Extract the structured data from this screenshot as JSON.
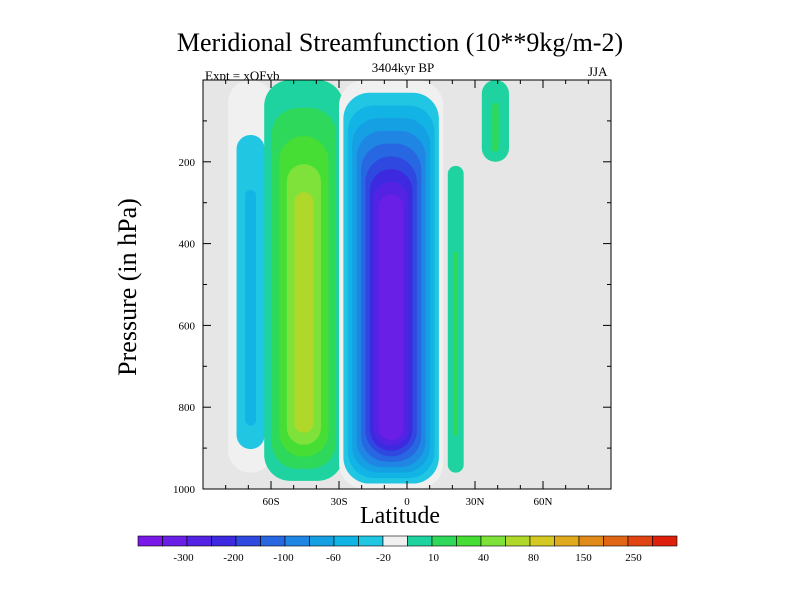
{
  "header": {
    "title": "Meridional Streamfunction (10**9kg/m-2)",
    "expt": "Expt = xQFvb",
    "period": "3404kyr BP",
    "season": "JJA"
  },
  "chart_data": {
    "type": "heatmap",
    "title": "Meridional Streamfunction (10**9kg/m-2)",
    "xlabel": "Latitude",
    "ylabel": "Pressure (in hPa)",
    "xlim": [
      -90,
      90
    ],
    "ylim": [
      1000,
      0
    ],
    "x_ticks": [
      {
        "value": -60,
        "label": "60S"
      },
      {
        "value": -30,
        "label": "30S"
      },
      {
        "value": 0,
        "label": "0"
      },
      {
        "value": 30,
        "label": "30N"
      },
      {
        "value": 60,
        "label": "60N"
      }
    ],
    "y_ticks": [
      {
        "value": 200,
        "label": "200"
      },
      {
        "value": 400,
        "label": "400"
      },
      {
        "value": 600,
        "label": "600"
      },
      {
        "value": 800,
        "label": "800"
      },
      {
        "value": 1000,
        "label": "1000"
      }
    ],
    "colorbar": {
      "labels": [
        "-300",
        "-200",
        "-100",
        "-60",
        "-20",
        "10",
        "40",
        "80",
        "150",
        "250"
      ],
      "colors": [
        "#7a18e8",
        "#6a1fe6",
        "#5422e3",
        "#3d2ae0",
        "#2f48e0",
        "#2767e2",
        "#1f87e3",
        "#16a0e4",
        "#11b4e4",
        "#20c6e2",
        "#f0f0f0",
        "#1ed3a0",
        "#2ed85a",
        "#46de34",
        "#7ee23a",
        "#b0d82a",
        "#d6c822",
        "#e0aa1e",
        "#e08a1a",
        "#e06616",
        "#df4412",
        "#dd1f0c"
      ]
    },
    "fields": [
      {
        "name": "negative-cell-south-polar",
        "lat_min": -79,
        "lat_max": -59,
        "p_min": 0,
        "p_max": 960,
        "peak": -30
      },
      {
        "name": "positive-cell-south",
        "lat_min": -63,
        "lat_max": -28,
        "p_min": 0,
        "p_max": 980,
        "peak": 60
      },
      {
        "name": "negative-cell-tropical",
        "lat_min": -30,
        "lat_max": 16,
        "p_min": 0,
        "p_max": 1000,
        "peak": -280
      },
      {
        "name": "positive-cell-north-tropical",
        "lat_min": 18,
        "lat_max": 25,
        "p_min": 210,
        "p_max": 960,
        "peak": 10
      },
      {
        "name": "positive-streaks-upper-north",
        "lat_min": 33,
        "lat_max": 45,
        "p_min": 0,
        "p_max": 200,
        "peak": 10
      }
    ]
  }
}
